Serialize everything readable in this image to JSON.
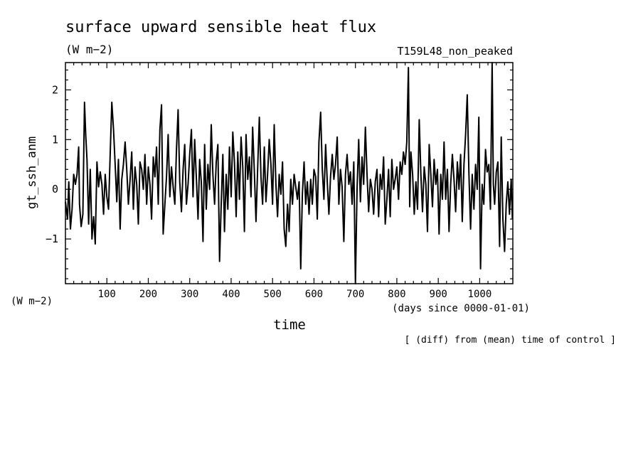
{
  "title": "surface upward sensible heat flux",
  "units_top": "(W m−2)",
  "experiment": "T159L48_non_peaked",
  "units_left": "(W m−2)",
  "note": "[ (diff) from (mean) time of control ]",
  "chart_data": {
    "type": "line",
    "title": "surface upward sensible heat flux",
    "xlabel": "time",
    "xunits": "(days since 0000-01-01)",
    "ylabel": "gt_ssh_anm",
    "xlim": [
      0,
      1080
    ],
    "ylim": [
      -1.9,
      2.55
    ],
    "xticks": [
      100,
      200,
      300,
      400,
      500,
      600,
      700,
      800,
      900,
      1000
    ],
    "yticks": [
      -1,
      0,
      1,
      2
    ],
    "grid": false,
    "colors": {
      "line": "#000000"
    },
    "series": [
      {
        "values": [
          [
            0,
            -0.25
          ],
          [
            5,
            -0.6
          ],
          [
            8,
            0.15
          ],
          [
            12,
            -0.8
          ],
          [
            16,
            -0.4
          ],
          [
            20,
            0.3
          ],
          [
            24,
            0.1
          ],
          [
            28,
            0.3
          ],
          [
            32,
            0.85
          ],
          [
            34,
            -0.3
          ],
          [
            38,
            -0.75
          ],
          [
            42,
            -0.5
          ],
          [
            46,
            1.75
          ],
          [
            49,
            1.1
          ],
          [
            52,
            0.6
          ],
          [
            56,
            -0.7
          ],
          [
            60,
            0.4
          ],
          [
            64,
            -1.0
          ],
          [
            68,
            -0.55
          ],
          [
            72,
            -1.1
          ],
          [
            76,
            0.55
          ],
          [
            80,
            0.05
          ],
          [
            84,
            0.35
          ],
          [
            88,
            0.1
          ],
          [
            92,
            -0.5
          ],
          [
            96,
            0.3
          ],
          [
            100,
            -0.15
          ],
          [
            104,
            -0.4
          ],
          [
            108,
            0.7
          ],
          [
            112,
            1.75
          ],
          [
            116,
            1.2
          ],
          [
            120,
            0.5
          ],
          [
            124,
            -0.25
          ],
          [
            128,
            0.6
          ],
          [
            132,
            -0.8
          ],
          [
            136,
            0.2
          ],
          [
            140,
            0.5
          ],
          [
            144,
            0.95
          ],
          [
            148,
            0.4
          ],
          [
            152,
            -0.3
          ],
          [
            156,
            0.2
          ],
          [
            160,
            0.75
          ],
          [
            164,
            -0.4
          ],
          [
            168,
            0.45
          ],
          [
            172,
            0.1
          ],
          [
            176,
            -0.7
          ],
          [
            180,
            0.55
          ],
          [
            184,
            0.4
          ],
          [
            188,
            0.0
          ],
          [
            192,
            0.7
          ],
          [
            196,
            -0.3
          ],
          [
            200,
            0.45
          ],
          [
            204,
            0.1
          ],
          [
            208,
            -0.6
          ],
          [
            212,
            0.65
          ],
          [
            216,
            0.25
          ],
          [
            220,
            0.85
          ],
          [
            224,
            -0.3
          ],
          [
            228,
            1.2
          ],
          [
            232,
            1.7
          ],
          [
            236,
            -0.9
          ],
          [
            240,
            -0.3
          ],
          [
            244,
            0.25
          ],
          [
            248,
            1.1
          ],
          [
            252,
            -0.15
          ],
          [
            256,
            0.45
          ],
          [
            260,
            0.05
          ],
          [
            264,
            -0.3
          ],
          [
            268,
            0.8
          ],
          [
            272,
            1.6
          ],
          [
            276,
            0.15
          ],
          [
            280,
            -0.45
          ],
          [
            284,
            0.4
          ],
          [
            288,
            0.9
          ],
          [
            292,
            -0.3
          ],
          [
            296,
            0.1
          ],
          [
            300,
            0.7
          ],
          [
            304,
            1.2
          ],
          [
            308,
            -0.15
          ],
          [
            312,
            1.0
          ],
          [
            316,
            0.25
          ],
          [
            320,
            -0.6
          ],
          [
            324,
            0.6
          ],
          [
            328,
            0.15
          ],
          [
            332,
            -1.05
          ],
          [
            336,
            0.9
          ],
          [
            340,
            -0.4
          ],
          [
            344,
            0.5
          ],
          [
            348,
            0.0
          ],
          [
            352,
            1.3
          ],
          [
            356,
            0.3
          ],
          [
            360,
            -0.3
          ],
          [
            364,
            0.55
          ],
          [
            368,
            0.9
          ],
          [
            372,
            -1.45
          ],
          [
            376,
            -0.3
          ],
          [
            380,
            0.7
          ],
          [
            384,
            -0.85
          ],
          [
            388,
            0.3
          ],
          [
            392,
            -0.4
          ],
          [
            396,
            0.85
          ],
          [
            400,
            -0.15
          ],
          [
            404,
            1.15
          ],
          [
            408,
            0.55
          ],
          [
            412,
            -0.55
          ],
          [
            416,
            0.75
          ],
          [
            420,
            -0.2
          ],
          [
            424,
            1.05
          ],
          [
            428,
            0.45
          ],
          [
            432,
            -0.85
          ],
          [
            436,
            1.1
          ],
          [
            440,
            0.2
          ],
          [
            444,
            0.65
          ],
          [
            448,
            -0.15
          ],
          [
            452,
            1.25
          ],
          [
            456,
            0.35
          ],
          [
            460,
            -0.65
          ],
          [
            464,
            0.4
          ],
          [
            468,
            1.45
          ],
          [
            472,
            0.25
          ],
          [
            476,
            -0.3
          ],
          [
            480,
            0.85
          ],
          [
            484,
            -0.25
          ],
          [
            488,
            0.3
          ],
          [
            492,
            1.0
          ],
          [
            496,
            0.5
          ],
          [
            500,
            -0.3
          ],
          [
            504,
            1.3
          ],
          [
            508,
            0.1
          ],
          [
            512,
            -0.55
          ],
          [
            516,
            0.3
          ],
          [
            520,
            -0.1
          ],
          [
            524,
            0.55
          ],
          [
            528,
            -0.8
          ],
          [
            532,
            -1.15
          ],
          [
            536,
            -0.3
          ],
          [
            540,
            -0.85
          ],
          [
            544,
            0.2
          ],
          [
            548,
            -0.3
          ],
          [
            552,
            0.3
          ],
          [
            556,
            0.05
          ],
          [
            560,
            -0.2
          ],
          [
            564,
            0.15
          ],
          [
            568,
            -1.6
          ],
          [
            572,
            -0.1
          ],
          [
            576,
            0.55
          ],
          [
            580,
            -0.3
          ],
          [
            584,
            0.15
          ],
          [
            588,
            -0.5
          ],
          [
            592,
            0.2
          ],
          [
            596,
            -0.3
          ],
          [
            600,
            0.4
          ],
          [
            604,
            0.25
          ],
          [
            608,
            -0.6
          ],
          [
            612,
            0.95
          ],
          [
            616,
            1.55
          ],
          [
            620,
            0.4
          ],
          [
            624,
            -0.2
          ],
          [
            628,
            0.9
          ],
          [
            632,
            0.15
          ],
          [
            636,
            -0.5
          ],
          [
            640,
            0.25
          ],
          [
            644,
            0.7
          ],
          [
            648,
            0.2
          ],
          [
            652,
            0.5
          ],
          [
            656,
            1.05
          ],
          [
            660,
            -0.3
          ],
          [
            664,
            0.4
          ],
          [
            668,
            0.05
          ],
          [
            672,
            -1.05
          ],
          [
            676,
            0.3
          ],
          [
            680,
            0.7
          ],
          [
            684,
            0.1
          ],
          [
            688,
            0.35
          ],
          [
            692,
            -0.3
          ],
          [
            696,
            0.55
          ],
          [
            700,
            -1.9
          ],
          [
            704,
            0.0
          ],
          [
            708,
            1.0
          ],
          [
            712,
            -0.25
          ],
          [
            716,
            0.65
          ],
          [
            720,
            0.1
          ],
          [
            724,
            1.25
          ],
          [
            728,
            0.3
          ],
          [
            732,
            -0.45
          ],
          [
            736,
            0.2
          ],
          [
            740,
            0.0
          ],
          [
            744,
            -0.5
          ],
          [
            748,
            0.15
          ],
          [
            752,
            0.4
          ],
          [
            756,
            -0.55
          ],
          [
            760,
            0.3
          ],
          [
            764,
            0.0
          ],
          [
            768,
            0.65
          ],
          [
            772,
            -0.7
          ],
          [
            776,
            -0.2
          ],
          [
            780,
            0.4
          ],
          [
            784,
            -0.55
          ],
          [
            788,
            0.6
          ],
          [
            792,
            0.0
          ],
          [
            796,
            0.2
          ],
          [
            800,
            0.45
          ],
          [
            804,
            -0.2
          ],
          [
            808,
            0.55
          ],
          [
            812,
            0.3
          ],
          [
            816,
            0.75
          ],
          [
            820,
            0.5
          ],
          [
            824,
            0.95
          ],
          [
            828,
            2.45
          ],
          [
            831,
            -0.35
          ],
          [
            834,
            0.75
          ],
          [
            838,
            0.3
          ],
          [
            842,
            -0.5
          ],
          [
            846,
            0.15
          ],
          [
            850,
            -0.4
          ],
          [
            854,
            1.4
          ],
          [
            858,
            0.3
          ],
          [
            862,
            -0.45
          ],
          [
            866,
            0.45
          ],
          [
            870,
            0.1
          ],
          [
            874,
            -0.85
          ],
          [
            878,
            0.9
          ],
          [
            882,
            0.3
          ],
          [
            886,
            -0.35
          ],
          [
            890,
            0.6
          ],
          [
            894,
            0.1
          ],
          [
            898,
            0.4
          ],
          [
            902,
            -0.9
          ],
          [
            906,
            0.3
          ],
          [
            910,
            -0.2
          ],
          [
            914,
            0.95
          ],
          [
            918,
            -0.2
          ],
          [
            922,
            0.4
          ],
          [
            926,
            -0.85
          ],
          [
            930,
            0.1
          ],
          [
            934,
            0.7
          ],
          [
            938,
            0.2
          ],
          [
            942,
            -0.45
          ],
          [
            946,
            0.55
          ],
          [
            950,
            0.0
          ],
          [
            954,
            0.7
          ],
          [
            958,
            -0.65
          ],
          [
            962,
            0.5
          ],
          [
            966,
            1.1
          ],
          [
            970,
            1.9
          ],
          [
            974,
            0.3
          ],
          [
            978,
            -0.8
          ],
          [
            982,
            0.3
          ],
          [
            986,
            -0.4
          ],
          [
            990,
            0.5
          ],
          [
            994,
            0.0
          ],
          [
            998,
            1.45
          ],
          [
            1002,
            -1.6
          ],
          [
            1006,
            0.1
          ],
          [
            1010,
            -0.3
          ],
          [
            1014,
            0.8
          ],
          [
            1018,
            0.35
          ],
          [
            1022,
            0.5
          ],
          [
            1026,
            -0.4
          ],
          [
            1030,
            2.55
          ],
          [
            1033,
            0.1
          ],
          [
            1036,
            -0.3
          ],
          [
            1040,
            0.35
          ],
          [
            1044,
            0.55
          ],
          [
            1048,
            -1.15
          ],
          [
            1052,
            1.05
          ],
          [
            1056,
            -0.6
          ],
          [
            1060,
            -1.25
          ],
          [
            1064,
            -0.3
          ],
          [
            1068,
            0.15
          ],
          [
            1072,
            -0.5
          ],
          [
            1076,
            0.2
          ],
          [
            1079,
            -0.6
          ]
        ]
      }
    ]
  }
}
